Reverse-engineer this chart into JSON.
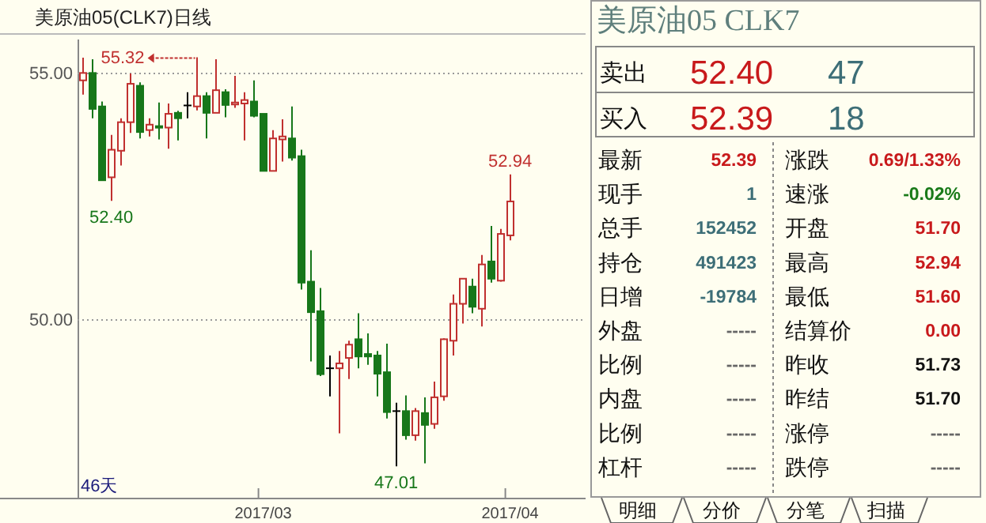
{
  "chart_data": [
    {
      "type": "candlestick",
      "title": "美原油05(CLK7)日线",
      "categories": [
        null,
        null,
        null,
        null,
        null,
        null,
        null,
        null,
        null,
        null,
        null,
        null,
        null,
        null,
        null,
        null,
        null,
        null,
        null,
        "2017/03",
        null,
        null,
        null,
        null,
        null,
        null,
        null,
        null,
        null,
        null,
        null,
        null,
        null,
        null,
        null,
        null,
        null,
        null,
        null,
        null,
        null,
        null,
        null,
        null,
        null,
        "2017/04"
      ],
      "ohlc": [
        [
          54.85,
          55.31,
          54.56,
          55.0
        ],
        [
          55.0,
          55.28,
          54.08,
          54.27
        ],
        [
          54.32,
          54.42,
          52.82,
          52.82
        ],
        [
          52.88,
          53.74,
          52.4,
          53.44
        ],
        [
          53.42,
          54.08,
          53.12,
          54.0
        ],
        [
          54.0,
          54.99,
          53.78,
          54.78
        ],
        [
          54.74,
          54.81,
          53.67,
          53.8
        ],
        [
          53.84,
          54.08,
          53.71,
          53.95
        ],
        [
          53.92,
          54.4,
          53.65,
          53.89
        ],
        [
          53.89,
          54.38,
          53.46,
          54.17
        ],
        [
          54.19,
          54.23,
          53.63,
          54.08
        ],
        [
          54.34,
          54.61,
          54.08,
          54.34
        ],
        [
          54.32,
          55.32,
          54.24,
          54.53
        ],
        [
          54.53,
          54.61,
          53.67,
          54.19
        ],
        [
          54.19,
          55.28,
          54.19,
          54.65
        ],
        [
          54.61,
          54.67,
          54.1,
          54.35
        ],
        [
          54.36,
          54.94,
          54.29,
          54.4
        ],
        [
          54.38,
          54.61,
          53.63,
          54.45
        ],
        [
          54.42,
          54.85,
          54.1,
          54.13
        ],
        [
          54.17,
          54.17,
          53.01,
          53.01
        ],
        [
          53.01,
          53.84,
          53.01,
          53.67
        ],
        [
          53.65,
          54.06,
          53.2,
          53.71
        ],
        [
          53.67,
          54.32,
          53.22,
          53.28
        ],
        [
          53.31,
          53.44,
          50.6,
          50.74
        ],
        [
          50.76,
          51.4,
          49.14,
          50.14
        ],
        [
          50.16,
          50.63,
          48.84,
          48.88
        ],
        [
          49.0,
          49.26,
          48.43,
          49.0
        ],
        [
          49.0,
          49.35,
          47.68,
          49.1
        ],
        [
          49.21,
          49.56,
          48.78,
          49.48
        ],
        [
          49.59,
          50.12,
          49.0,
          49.24
        ],
        [
          49.29,
          49.71,
          49.07,
          49.24
        ],
        [
          49.26,
          49.35,
          48.43,
          48.89
        ],
        [
          48.92,
          49.5,
          47.98,
          48.11
        ],
        [
          48.13,
          48.3,
          47.01,
          48.13
        ],
        [
          48.13,
          48.45,
          47.55,
          47.64
        ],
        [
          47.64,
          48.19,
          47.53,
          48.13
        ],
        [
          48.09,
          48.41,
          47.07,
          47.85
        ],
        [
          47.87,
          48.73,
          47.77,
          48.41
        ],
        [
          48.43,
          49.61,
          48.34,
          49.59
        ],
        [
          49.56,
          50.5,
          49.26,
          50.31
        ],
        [
          50.31,
          50.82,
          49.91,
          50.82
        ],
        [
          50.66,
          50.82,
          50.12,
          50.25
        ],
        [
          50.21,
          51.3,
          49.85,
          51.11
        ],
        [
          51.17,
          51.89,
          50.74,
          50.82
        ],
        [
          50.78,
          51.83,
          50.76,
          51.73
        ],
        [
          51.7,
          52.94,
          51.6,
          52.39
        ]
      ],
      "ylim": [
        46.37,
        55.68
      ],
      "yticks": [
        {
          "value": 55,
          "label": "55.00"
        },
        {
          "value": 50,
          "label": "50.00"
        }
      ],
      "grid": "y",
      "annotations": [
        "55.32",
        {
          "text": "52.40",
          "y": 52.4
        },
        {
          "text": "47.01",
          "y": 47.01
        },
        {
          "text": "52.94",
          "y": 52.94
        },
        "46天"
      ]
    },
    {
      "type": "other",
      "title": "美原油05 CLK7",
      "annotations": [
        "卖出",
        "52.40",
        "47",
        "买入",
        "52.39",
        "18",
        "最新",
        "52.39",
        "涨跌",
        "0.69/1.33%",
        "现手",
        "1",
        "速涨",
        "-0.02%",
        "总手",
        "152452",
        "开盘",
        "51.70",
        "持仓",
        "491423",
        "最高",
        "52.94",
        "日增",
        "-19784",
        "最低",
        "51.60",
        "外盘",
        "-----",
        "结算价",
        "0.00",
        "比例",
        "-----",
        "昨收",
        "51.73",
        "内盘",
        "-----",
        "昨结",
        "51.70",
        "比例",
        "-----",
        "涨停",
        "-----",
        "杠杆",
        "-----",
        "跌停",
        "-----",
        "明细",
        "分价",
        "分笔",
        "扫描"
      ]
    }
  ]
}
